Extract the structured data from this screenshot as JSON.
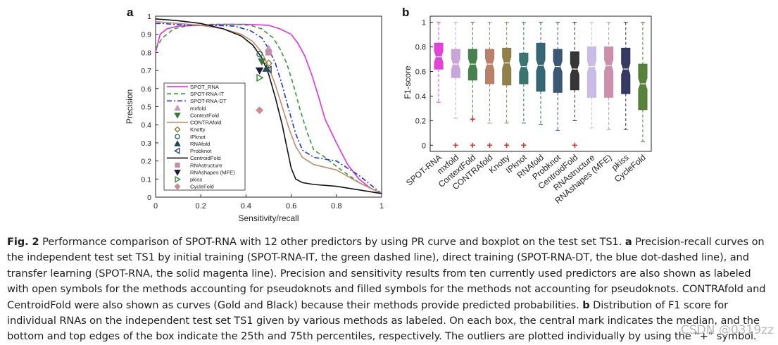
{
  "figure": {
    "panel_a_label": "a",
    "panel_b_label": "b",
    "caption": {
      "fig_label": "Fig. 2",
      "part1": " Performance comparison of SPOT-RNA with 12 other predictors by using PR curve and boxplot on the test set TS1. ",
      "a_label": "a",
      "part2": " Precision-recall curves on the independent test set TS1 by initial training (SPOT-RNA-IT, the green dashed line), direct training (SPOT-RNA-DT, the blue dot-dashed line), and transfer learning (SPOT-RNA, the solid magenta line). Precision and sensitivity results from ten currently used predictors are also shown as labeled with open symbols for the methods accounting for pseudoknots and filled symbols for the methods not accounting for pseudoknots. CONTRAfold and CentroidFold were also shown as curves (Gold and Black) because their methods provide predicted probabilities. ",
      "b_label": "b",
      "part3": " Distribution of F1 score for individual RNAs on the independent test set TS1 given by various methods as labeled. On each box, the central mark indicates the median, and the bottom and top edges of the box indicate the 25th and 75th percentiles, respectively. The outliers are plotted individually by using the “+” symbol."
    },
    "watermark": "CSDN @0319zz"
  },
  "chart_data": [
    {
      "type": "line",
      "panel": "a",
      "title": "",
      "xlabel": "Sensitivity/recall",
      "ylabel": "Precision",
      "xlim": [
        0,
        1
      ],
      "ylim": [
        0,
        1
      ],
      "xticks": [
        "0",
        "0.2",
        "0.4",
        "0.6",
        "0.8",
        "1"
      ],
      "yticks": [
        "0",
        "0.1",
        "0.2",
        "0.3",
        "0.4",
        "0.5",
        "0.6",
        "0.7",
        "0.8",
        "0.9",
        "1"
      ],
      "legend_position": "bottom-left",
      "series": [
        {
          "name": "SPOT_RNA",
          "color": "#e52fe5",
          "style": "solid",
          "x": [
            0,
            0.02,
            0.05,
            0.1,
            0.2,
            0.3,
            0.4,
            0.5,
            0.55,
            0.6,
            0.63,
            0.66,
            0.69,
            0.72,
            0.75,
            0.8,
            0.85,
            0.9,
            0.95,
            1.0
          ],
          "y": [
            0.8,
            0.9,
            0.93,
            0.945,
            0.95,
            0.955,
            0.955,
            0.95,
            0.93,
            0.9,
            0.85,
            0.78,
            0.68,
            0.56,
            0.43,
            0.3,
            0.18,
            0.1,
            0.05,
            0.02
          ]
        },
        {
          "name": "SPOT-RNA-IT",
          "color": "#2e9e2e",
          "style": "dashed",
          "x": [
            0,
            0.03,
            0.08,
            0.15,
            0.25,
            0.35,
            0.42,
            0.47,
            0.52,
            0.55,
            0.58,
            0.61,
            0.64,
            0.67,
            0.7,
            0.75,
            0.8,
            0.9,
            1.0
          ],
          "y": [
            0.82,
            0.88,
            0.93,
            0.95,
            0.955,
            0.955,
            0.95,
            0.93,
            0.88,
            0.82,
            0.74,
            0.62,
            0.48,
            0.36,
            0.26,
            0.22,
            0.17,
            0.08,
            0.02
          ]
        },
        {
          "name": "SPOT-RNA-DT",
          "color": "#2233dd",
          "style": "dashdot",
          "x": [
            0,
            0.03,
            0.08,
            0.15,
            0.25,
            0.35,
            0.42,
            0.47,
            0.5,
            0.53,
            0.56,
            0.59,
            0.62,
            0.65,
            0.7,
            0.8,
            0.9,
            1.0
          ],
          "y": [
            0.96,
            0.96,
            0.955,
            0.95,
            0.95,
            0.945,
            0.92,
            0.88,
            0.82,
            0.74,
            0.62,
            0.48,
            0.35,
            0.26,
            0.22,
            0.2,
            0.12,
            0.02
          ]
        },
        {
          "name": "CONTRAfold",
          "color": "#c08a6a",
          "style": "solid",
          "x": [
            0,
            0.05,
            0.1,
            0.2,
            0.3,
            0.38,
            0.43,
            0.47,
            0.5,
            0.53,
            0.56,
            0.59,
            0.62,
            0.65,
            0.7,
            0.8,
            0.9,
            1.0
          ],
          "y": [
            0.97,
            0.965,
            0.96,
            0.95,
            0.93,
            0.9,
            0.86,
            0.8,
            0.72,
            0.62,
            0.5,
            0.38,
            0.28,
            0.22,
            0.18,
            0.15,
            0.08,
            0.02
          ]
        },
        {
          "name": "CentroidFold",
          "color": "#111111",
          "style": "solid",
          "x": [
            0,
            0.05,
            0.1,
            0.2,
            0.3,
            0.38,
            0.43,
            0.47,
            0.5,
            0.53,
            0.56,
            0.58,
            0.6,
            0.62,
            0.65,
            0.7,
            0.8,
            0.9,
            1.0
          ],
          "y": [
            0.985,
            0.98,
            0.975,
            0.96,
            0.93,
            0.89,
            0.84,
            0.77,
            0.68,
            0.55,
            0.4,
            0.28,
            0.16,
            0.1,
            0.08,
            0.07,
            0.06,
            0.04,
            0.02
          ]
        }
      ],
      "markers": [
        {
          "name": "mxfold",
          "symbol": "triangle-up",
          "filled": true,
          "color": "#c79ad0",
          "x": 0.5,
          "y": 0.82
        },
        {
          "name": "ContextFold",
          "symbol": "triangle-down",
          "filled": true,
          "color": "#3b7a3b",
          "x": 0.47,
          "y": 0.75
        },
        {
          "name": "Knotty",
          "symbol": "diamond",
          "filled": false,
          "color": "#8a7a3c",
          "x": 0.5,
          "y": 0.74
        },
        {
          "name": "IPknot",
          "symbol": "circle",
          "filled": false,
          "color": "#2a6a6a",
          "x": 0.46,
          "y": 0.79
        },
        {
          "name": "RNAfold",
          "symbol": "triangle-up",
          "filled": true,
          "color": "#1f4a5a",
          "x": 0.49,
          "y": 0.71
        },
        {
          "name": "Probknot",
          "symbol": "triangle-left",
          "filled": false,
          "color": "#2a4a6a",
          "x": 0.5,
          "y": 0.705
        },
        {
          "name": "RNAstructure",
          "symbol": "square",
          "filled": true,
          "color": "#c78aa8",
          "x": 0.5,
          "y": 0.8
        },
        {
          "name": "RNAshapes (MFE)",
          "symbol": "triangle-down",
          "filled": true,
          "color": "#1a1a3a",
          "x": 0.46,
          "y": 0.7
        },
        {
          "name": "pkiss",
          "symbol": "triangle-right",
          "filled": false,
          "color": "#2f8a3a",
          "x": 0.46,
          "y": 0.66
        },
        {
          "name": "CycleFold",
          "symbol": "diamond",
          "filled": true,
          "color": "#d08a95",
          "x": 0.46,
          "y": 0.48
        }
      ],
      "legend_entries": [
        "SPOT_RNA",
        "SPOT-RNA-IT",
        "SPOT-RNA-DT",
        "mxfold",
        "ContextFold",
        "CONTRAfold",
        "Knotty",
        "IPknot",
        "RNAfold",
        "Probknot",
        "CentroidFold",
        "RNAstructure",
        "RNAshapes (MFE)",
        "pkiss",
        "CycleFold"
      ]
    },
    {
      "type": "box",
      "panel": "b",
      "title": "",
      "ylabel": "F1-score",
      "ylim": [
        -0.05,
        1.05
      ],
      "yticks": [
        "0",
        "0.2",
        "0.4",
        "0.6",
        "0.8",
        "1"
      ],
      "categories": [
        "SPOT-RNA",
        "mxfold",
        "ContextFold",
        "CONTRAfold",
        "Knotty",
        "IPknot",
        "RNAfold",
        "Probknot",
        "CentroidFold",
        "RNAstructure",
        "RNAshapes (MFE)",
        "pkiss",
        "CycleFold"
      ],
      "colors": [
        "#e03ad8",
        "#c9a0d6",
        "#3c7a44",
        "#b57a62",
        "#8a7a40",
        "#2f6e6a",
        "#2a5f6e",
        "#314f6e",
        "#2b2b2b",
        "#c8b8e6",
        "#c98aa8",
        "#2b2f5a",
        "#4f7a32"
      ],
      "q1": [
        0.62,
        0.55,
        0.53,
        0.5,
        0.49,
        0.5,
        0.44,
        0.43,
        0.45,
        0.39,
        0.39,
        0.42,
        0.29
      ],
      "median": [
        0.72,
        0.66,
        0.66,
        0.66,
        0.67,
        0.64,
        0.65,
        0.64,
        0.62,
        0.64,
        0.65,
        0.62,
        0.5
      ],
      "q3": [
        0.83,
        0.78,
        0.78,
        0.78,
        0.79,
        0.75,
        0.83,
        0.78,
        0.76,
        0.8,
        0.8,
        0.79,
        0.66
      ],
      "whisker_low": [
        0.35,
        0.22,
        0.21,
        0.18,
        0.18,
        0.18,
        0.17,
        0.12,
        0.2,
        0.14,
        0.13,
        0.13,
        0.03
      ],
      "whisker_high": [
        1.0,
        1.0,
        1.0,
        1.0,
        1.0,
        1.0,
        1.0,
        1.0,
        1.0,
        1.0,
        1.0,
        1.0,
        1.0
      ],
      "outliers": [
        [],
        [
          0
        ],
        [
          0,
          0.21
        ],
        [
          0
        ],
        [
          0
        ],
        [
          0
        ],
        [],
        [],
        [
          0
        ],
        [],
        [],
        [],
        []
      ]
    }
  ]
}
